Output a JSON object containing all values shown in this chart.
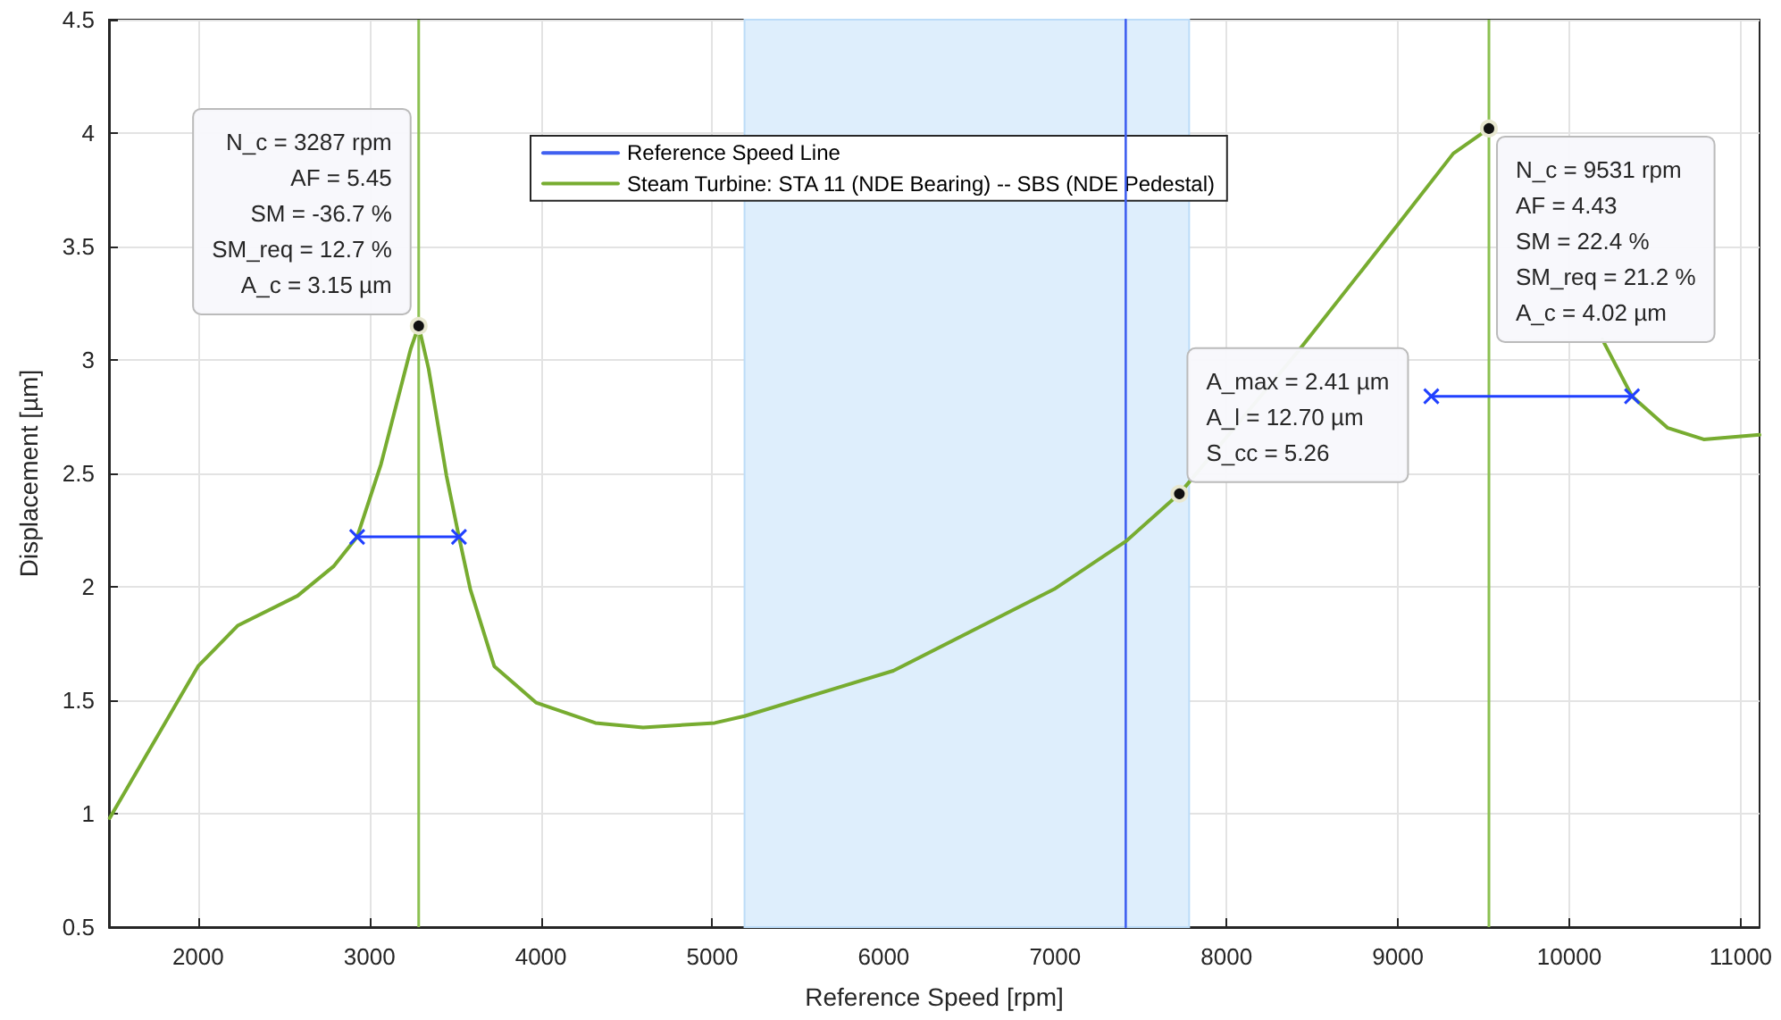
{
  "chart_data": {
    "type": "line",
    "xlabel": "Reference Speed [rpm]",
    "ylabel": "Displacement [µm]",
    "xlim": [
      1480,
      11110
    ],
    "xticks": [
      2000,
      3000,
      4000,
      5000,
      6000,
      7000,
      8000,
      9000,
      10000,
      11000
    ],
    "ylim": [
      0.5,
      4.5
    ],
    "yticks": [
      0.5,
      1,
      1.5,
      2,
      2.5,
      3,
      3.5,
      4,
      4.5
    ],
    "grid": true,
    "legend": "top",
    "marker": "none",
    "line_style": "solid",
    "series": [
      {
        "name": "Reference Speed Line",
        "color": "#4060f0",
        "x": [
          7412,
          7412
        ],
        "values": [
          0.5,
          4.5
        ]
      },
      {
        "name": "Steam Turbine: STA 11 (NDE Bearing) -- SBS (NDE Pedestal)",
        "color": "#77ac30",
        "x": [
          1484,
          2000,
          2233,
          2580,
          2790,
          2928,
          3067,
          3241,
          3287,
          3345,
          3449,
          3522,
          3588,
          3728,
          3971,
          4318,
          4596,
          5014,
          5188,
          6056,
          6995,
          7412,
          7725,
          8420,
          8941,
          9323,
          9531,
          9700,
          9900,
          10193,
          10366,
          10575,
          10784,
          11110
        ],
        "values": [
          0.98,
          1.65,
          1.83,
          1.96,
          2.09,
          2.22,
          2.54,
          3.05,
          3.15,
          2.96,
          2.49,
          2.22,
          1.99,
          1.65,
          1.49,
          1.4,
          1.38,
          1.4,
          1.43,
          1.63,
          1.99,
          2.2,
          2.41,
          3.04,
          3.54,
          3.91,
          4.02,
          null,
          null,
          3.09,
          2.84,
          2.7,
          2.65,
          2.67
        ]
      },
      {
        "color": "#2040ff",
        "marker": "cross",
        "x": [
          2928,
          3522
        ],
        "values": [
          2.22,
          2.22
        ]
      },
      {
        "color": "#2040ff",
        "marker": "cross",
        "x": [
          9195,
          10366
        ],
        "values": [
          2.84,
          2.84
        ]
      }
    ],
    "ref_lines": [
      {
        "axis": "x",
        "value": 3287,
        "color": "#8cc152"
      },
      {
        "axis": "x",
        "value": 9531,
        "color": "#8cc152"
      }
    ],
    "bands": [
      {
        "axis": "x",
        "from": 5188,
        "to": 7782,
        "color": "#deeefc"
      }
    ],
    "annotations": [
      {
        "text": "N_c = 3287 rpm\nAF = 5.45\nSM = -36.7 %\nSM_req = 12.7 %\nA_c = 3.15 µm",
        "x": 3287,
        "y": 3.15
      },
      {
        "text": "N_c = 9531 rpm\nAF = 4.43\nSM = 22.4 %\nSM_req = 21.2 %\nA_c = 4.02 µm",
        "x": 9531,
        "y": 4.02
      },
      {
        "text": "A_max = 2.41 µm\nA_l = 12.70 µm\nS_cc = 5.26",
        "x": 7725,
        "y": 2.41
      }
    ]
  }
}
